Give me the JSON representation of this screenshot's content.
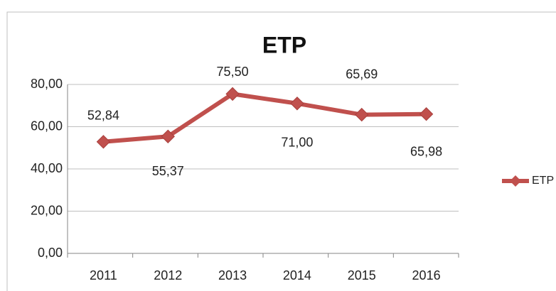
{
  "chart_data": {
    "type": "line",
    "title": "ETP",
    "categories": [
      "2011",
      "2012",
      "2013",
      "2014",
      "2015",
      "2016"
    ],
    "series": [
      {
        "name": "ETP",
        "color": "#c0504d",
        "values": [
          52.84,
          55.37,
          75.5,
          71.0,
          65.69,
          65.98
        ],
        "value_labels": [
          "52,84",
          "55,37",
          "75,50",
          "71,00",
          "65,69",
          "65,98"
        ]
      }
    ],
    "ylim": [
      0,
      80
    ],
    "yticks": [
      {
        "value": 0,
        "label": "0,00"
      },
      {
        "value": 20,
        "label": "20,00"
      },
      {
        "value": 40,
        "label": "40,00"
      },
      {
        "value": 60,
        "label": "60,00"
      },
      {
        "value": 80,
        "label": "80,00"
      }
    ],
    "grid": true,
    "legend": "right"
  }
}
